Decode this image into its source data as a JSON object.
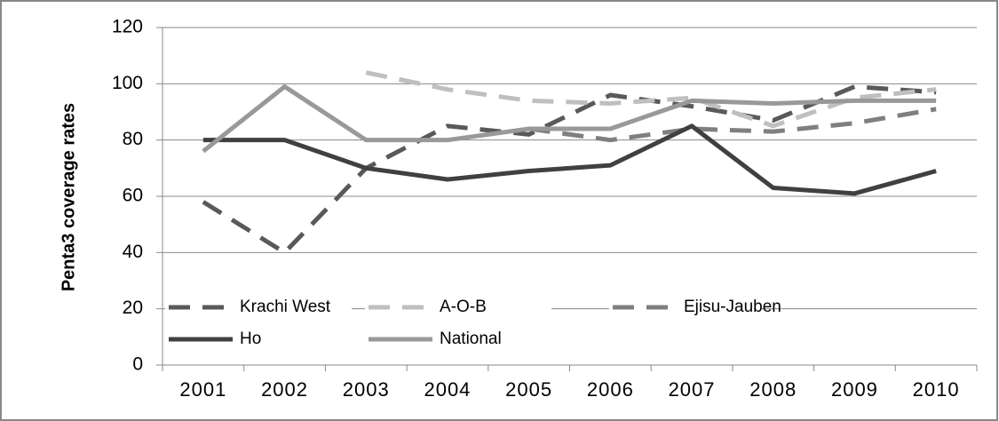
{
  "chart_data": {
    "type": "line",
    "y_label": "Penta3 coverage rates",
    "categories": [
      "2001",
      "2002",
      "2003",
      "2004",
      "2005",
      "2006",
      "2007",
      "2008",
      "2009",
      "2010"
    ],
    "series": [
      {
        "name": "Krachi West",
        "color": "#595959",
        "dash": true,
        "values": [
          58,
          40,
          70,
          85,
          82,
          96,
          92,
          87,
          99,
          97
        ]
      },
      {
        "name": "A-O-B",
        "color": "#bfbfbf",
        "dash": true,
        "values": [
          null,
          null,
          104,
          98,
          94,
          93,
          95,
          85,
          95,
          98
        ]
      },
      {
        "name": "Ejisu-Jauben",
        "color": "#7f7f7f",
        "dash": true,
        "values": [
          null,
          null,
          null,
          null,
          84,
          80,
          84,
          83,
          86,
          91
        ]
      },
      {
        "name": "Ho",
        "color": "#404040",
        "dash": false,
        "values": [
          80,
          80,
          70,
          66,
          69,
          71,
          85,
          63,
          61,
          69
        ]
      },
      {
        "name": "National",
        "color": "#999999",
        "dash": false,
        "values": [
          76,
          99,
          80,
          80,
          84,
          84,
          94,
          93,
          94,
          94
        ]
      }
    ],
    "ylim": [
      0,
      120
    ],
    "yticks": [
      0,
      20,
      40,
      60,
      80,
      100,
      120
    ],
    "grid": true,
    "legend": "lower left"
  }
}
